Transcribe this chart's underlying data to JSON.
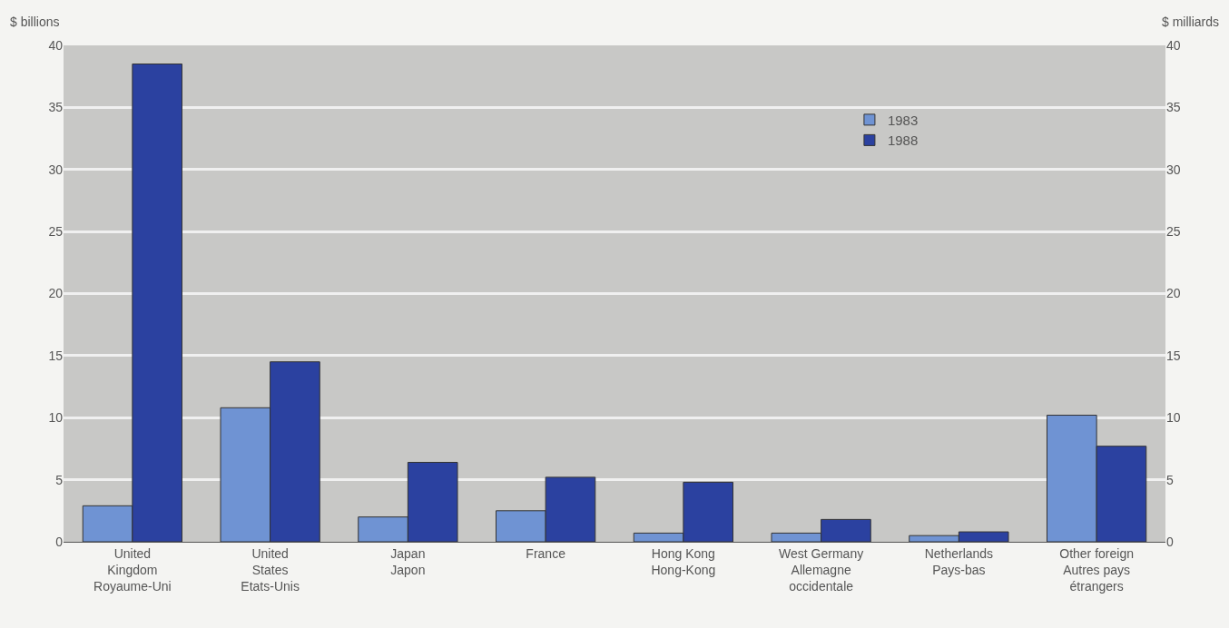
{
  "chart_data": {
    "type": "bar",
    "ylabel": "$ billions",
    "y2label": "$ milliards",
    "categories": [
      "United\nKingdom\nRoyaume-Uni",
      "United\nStates\nEtats-Unis",
      "Japan\nJapon",
      "France",
      "Hong Kong\nHong-Kong",
      "West Germany\nAllemagne\noccidentale",
      "Netherlands\nPays-bas",
      "Other foreign\nAutres pays\nétrangers"
    ],
    "series": [
      {
        "name": "1983",
        "color": "#6f93d3",
        "values": [
          2.9,
          10.8,
          2.0,
          2.5,
          0.7,
          0.7,
          0.5,
          10.2
        ]
      },
      {
        "name": "1988",
        "color": "#2b41a0",
        "values": [
          38.5,
          14.5,
          6.4,
          5.2,
          4.8,
          1.8,
          0.8,
          7.7
        ]
      }
    ],
    "ylim": [
      0,
      40
    ],
    "yticks": [
      0,
      5,
      10,
      15,
      20,
      25,
      30,
      35,
      40
    ],
    "y2lim": [
      0,
      40
    ],
    "y2ticks": [
      0,
      5,
      10,
      15,
      20,
      25,
      30,
      35,
      40
    ],
    "grid": "y",
    "legend": "top right"
  }
}
